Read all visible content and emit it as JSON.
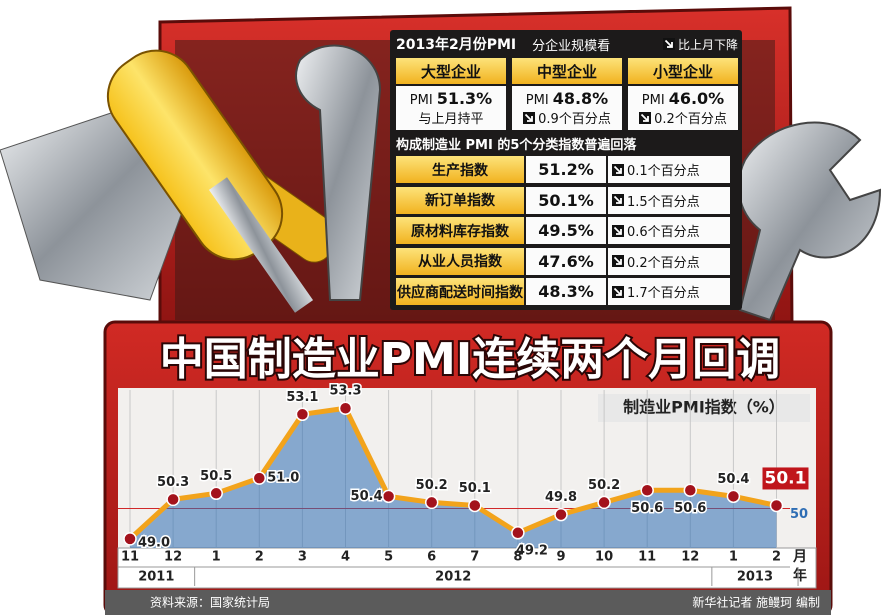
{
  "chart_data": {
    "type": "line",
    "title": "中国制造业PMI连续两个月回调",
    "y_label": "制造业PMI指数（%）",
    "x_unit": "月",
    "group_unit": "年",
    "categories": [
      "11",
      "12",
      "1",
      "2",
      "3",
      "4",
      "5",
      "6",
      "7",
      "8",
      "9",
      "10",
      "11",
      "12",
      "1",
      "2"
    ],
    "x_groups": [
      {
        "label": "2011",
        "count": 2
      },
      {
        "label": "2012",
        "count": 12
      },
      {
        "label": "2013",
        "count": 2
      }
    ],
    "values": [
      49.0,
      50.3,
      50.5,
      51.0,
      53.1,
      53.3,
      50.4,
      50.2,
      50.1,
      49.2,
      49.8,
      50.2,
      50.6,
      50.6,
      50.4,
      50.1
    ],
    "value_labels": [
      "49.0",
      "50.3",
      "50.5",
      "51.0",
      "53.1",
      "53.3",
      "50.4",
      "50.2",
      "50.1",
      "49.2",
      "49.8",
      "50.2",
      "50.6",
      "50.6",
      "50.4",
      "50.1"
    ],
    "line_color": "#f2a31b",
    "marker_color": "#a3121c",
    "area_color": "#2e6db4",
    "ylim": [
      48.7,
      53.9
    ],
    "yticks": [
      50
    ],
    "grid": true
  },
  "panel": {
    "title": "2013年2月份PMI",
    "subtitle": "分企业规模看",
    "legend": "比上月下降",
    "sizes": [
      {
        "name": "大型企业",
        "label": "PMI",
        "value": "51.3%",
        "change": "与上月持平",
        "down": false
      },
      {
        "name": "中型企业",
        "label": "PMI",
        "value": "48.8%",
        "change": "0.9个百分点",
        "down": true
      },
      {
        "name": "小型企业",
        "label": "PMI",
        "value": "46.0%",
        "change": "0.2个百分点",
        "down": true
      }
    ],
    "indices_title": "构成制造业 PMI 的5个分类指数普遍回落",
    "indices": [
      {
        "name": "生产指数",
        "value": "51.2%",
        "change": "0.1个百分点",
        "down": true
      },
      {
        "name": "新订单指数",
        "value": "50.1%",
        "change": "1.5个百分点",
        "down": true
      },
      {
        "name": "原材料库存指数",
        "value": "49.5%",
        "change": "0.6个百分点",
        "down": true
      },
      {
        "name": "从业人员指数",
        "value": "47.6%",
        "change": "0.2个百分点",
        "down": true
      },
      {
        "name": "供应商配送时间指数",
        "value": "48.3%",
        "change": "1.7个百分点",
        "down": true
      }
    ]
  },
  "footer": {
    "source": "资料来源：国家统计局",
    "credit": "新华社记者 施鳗珂 编制"
  }
}
